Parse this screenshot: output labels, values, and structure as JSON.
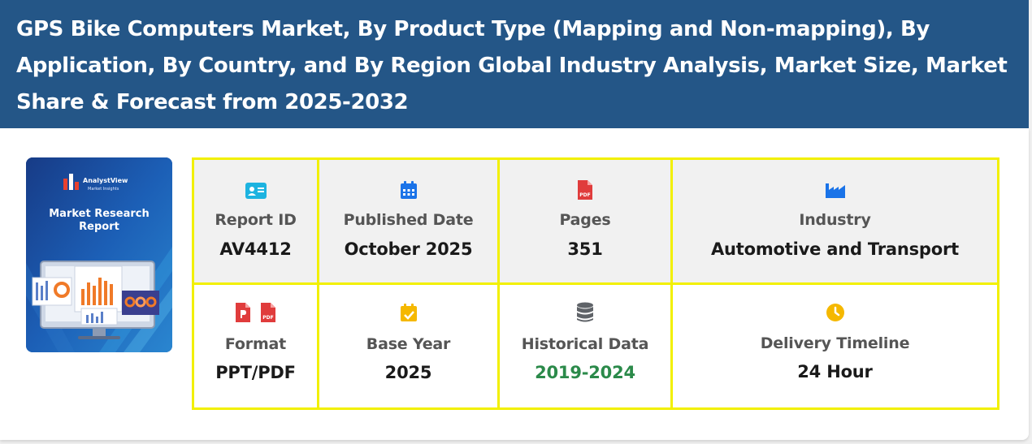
{
  "header": {
    "title": "GPS Bike Computers Market, By Product Type (Mapping and Non-mapping), By Application, By Country, and By Region Global Industry Analysis, Market Size, Market Share & Forecast from 2025-2032"
  },
  "cover": {
    "brand": "AnalystView",
    "brand_sub": "Market Insights",
    "line1": "Market Research",
    "line2": "Report"
  },
  "info": {
    "report_id": {
      "label": "Report ID",
      "value": "AV4412",
      "icon": "id-card-icon"
    },
    "published": {
      "label": "Published Date",
      "value": "October 2025",
      "icon": "calendar-icon"
    },
    "pages": {
      "label": "Pages",
      "value": "351",
      "icon": "pdf-file-icon"
    },
    "industry": {
      "label": "Industry",
      "value": "Automotive and Transport",
      "icon": "industry-icon"
    },
    "format": {
      "label": "Format",
      "value": "PPT/PDF",
      "icons": [
        "ppt-file-icon",
        "pdf-file-icon"
      ]
    },
    "base_year": {
      "label": "Base Year",
      "value": "2025",
      "icon": "calendar-check-icon"
    },
    "historical": {
      "label": "Historical Data",
      "value": "2019-2024",
      "icon": "database-icon"
    },
    "delivery": {
      "label": "Delivery Timeline",
      "value": "24 Hour",
      "icon": "clock-icon"
    }
  },
  "colors": {
    "header_bg": "#245687",
    "border_yellow": "#f2f000",
    "historical_green": "#2b8a4a",
    "pdf_red": "#e03c3c",
    "blue_icon": "#1a73e8",
    "cyan_icon": "#1db3e0",
    "yellow_icon": "#f5b800"
  }
}
